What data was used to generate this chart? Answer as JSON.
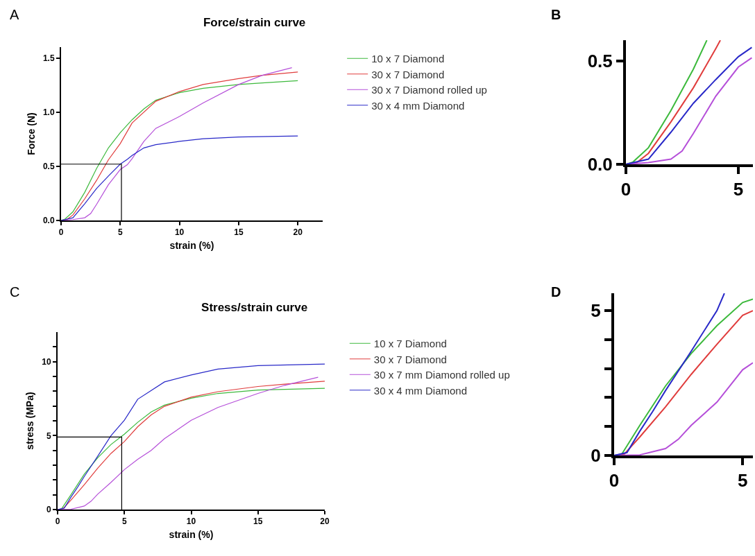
{
  "chart_data": [
    {
      "type": "line",
      "title": "Force/strain curve",
      "xlabel": "strain (%)",
      "ylabel": "Force (N)",
      "annotations": [
        "A"
      ],
      "xlim": [
        0,
        22.1
      ],
      "ylim": [
        0,
        1.6
      ],
      "xticks": [
        0,
        5,
        10,
        15,
        20
      ],
      "yticks": [
        {
          "value": 0,
          "label": "0.0"
        },
        0.5,
        {
          "value": 1,
          "label": "1.0"
        },
        1.5
      ],
      "grid": false,
      "legend": "right",
      "marker": "none",
      "line_style": "solid",
      "series": [
        {
          "name": "10 x 7 Diamond",
          "color": "#3cb93c",
          "x": [
            0,
            0.3,
            1,
            2,
            3,
            4,
            5,
            6,
            7,
            8,
            10,
            12,
            15,
            17,
            20
          ],
          "values": [
            0,
            0.01,
            0.08,
            0.26,
            0.48,
            0.67,
            0.81,
            0.93,
            1.03,
            1.11,
            1.18,
            1.22,
            1.255,
            1.27,
            1.29
          ]
        },
        {
          "name": "30 x 7 Diamond",
          "color": "#e03c3c",
          "x": [
            0,
            0.5,
            1,
            2,
            3,
            4,
            5,
            6,
            8,
            10,
            12,
            15,
            17,
            20
          ],
          "values": [
            0,
            0.01,
            0.05,
            0.2,
            0.37,
            0.56,
            0.71,
            0.9,
            1.1,
            1.19,
            1.255,
            1.31,
            1.34,
            1.37
          ]
        },
        {
          "name": "30 x 7 Diamond rolled up",
          "color": "#b54fd9",
          "x": [
            0,
            1,
            2,
            2.5,
            3,
            4,
            5,
            5.6,
            6,
            7,
            8,
            10,
            12,
            15,
            17,
            19.5
          ],
          "values": [
            0,
            0.008,
            0.025,
            0.064,
            0.149,
            0.33,
            0.47,
            0.515,
            0.57,
            0.73,
            0.85,
            0.96,
            1.085,
            1.255,
            1.34,
            1.41
          ]
        },
        {
          "name": "30 x 4 mm Diamond",
          "color": "#2828c8",
          "x": [
            0,
            1,
            2,
            3,
            4,
            5,
            5.6,
            6,
            7,
            8,
            10,
            12,
            15,
            20
          ],
          "values": [
            0,
            0.025,
            0.155,
            0.295,
            0.41,
            0.52,
            0.565,
            0.6,
            0.67,
            0.7,
            0.73,
            0.755,
            0.77,
            0.78
          ]
        },
        {
          "color": "#000000",
          "x": [
            0,
            5.1,
            5.1
          ],
          "values": [
            0.52,
            0.52,
            0
          ]
        }
      ]
    },
    {
      "type": "line",
      "annotations": [
        "B"
      ],
      "xlim": [
        0,
        5.65
      ],
      "ylim": [
        0,
        0.6
      ],
      "xticks": [
        0,
        5
      ],
      "yticks": [
        {
          "value": 0,
          "label": "0.0"
        },
        0.5
      ],
      "grid": false,
      "legend": false,
      "marker": "none",
      "line_style": "solid",
      "series": [
        {
          "color": "#3cb93c",
          "x": [
            0,
            0.3,
            1,
            2,
            3,
            3.6
          ],
          "values": [
            0,
            0.01,
            0.08,
            0.26,
            0.46,
            0.6
          ]
        },
        {
          "color": "#e03c3c",
          "x": [
            0,
            0.5,
            1,
            2,
            3,
            4,
            4.2
          ],
          "values": [
            0,
            0.01,
            0.053,
            0.205,
            0.37,
            0.56,
            0.6
          ]
        },
        {
          "color": "#b54fd9",
          "x": [
            0,
            1,
            2,
            2.5,
            3,
            4,
            5,
            5.6
          ],
          "values": [
            0,
            0.008,
            0.025,
            0.064,
            0.149,
            0.33,
            0.47,
            0.515
          ]
        },
        {
          "color": "#2828c8",
          "x": [
            0,
            1,
            2,
            3,
            4,
            5,
            5.6
          ],
          "values": [
            0,
            0.025,
            0.155,
            0.295,
            0.41,
            0.52,
            0.565
          ]
        }
      ]
    },
    {
      "type": "line",
      "title": "Stress/strain curve",
      "xlabel": "strain (%)",
      "ylabel": "stress (MPa)",
      "annotations": [
        "C"
      ],
      "xlim": [
        0,
        20
      ],
      "ylim": [
        0,
        12
      ],
      "xticks": [
        0,
        5,
        10,
        15,
        20
      ],
      "yticks": [
        0,
        {
          "value": 1,
          "label": null
        },
        {
          "value": 2,
          "label": null
        },
        {
          "value": 3,
          "label": null
        },
        {
          "value": 4,
          "label": null
        },
        5,
        {
          "value": 6,
          "label": null
        },
        {
          "value": 7,
          "label": null
        },
        {
          "value": 8,
          "label": null
        },
        {
          "value": 9,
          "label": null
        },
        10,
        {
          "value": 11,
          "label": null
        }
      ],
      "grid": false,
      "legend": "right",
      "marker": "none",
      "line_style": "solid",
      "series": [
        {
          "name": "10 x 7 Diamond",
          "color": "#3cb93c",
          "x": [
            0,
            0.3,
            1,
            2,
            3,
            4,
            5,
            6,
            7,
            8,
            10,
            12,
            15,
            20
          ],
          "values": [
            0,
            0.05,
            1.0,
            2.4,
            3.5,
            4.4,
            5.1,
            5.9,
            6.6,
            7.06,
            7.53,
            7.85,
            8.08,
            8.2
          ]
        },
        {
          "name": "30 x 7 Diamond",
          "color": "#e03c3c",
          "x": [
            0,
            0.4,
            1,
            2,
            3,
            4,
            5,
            6,
            7,
            8,
            10,
            12,
            15,
            17,
            20
          ],
          "values": [
            0,
            0.05,
            0.64,
            1.68,
            2.8,
            3.8,
            4.6,
            5.6,
            6.4,
            6.98,
            7.6,
            7.97,
            8.32,
            8.48,
            8.68
          ]
        },
        {
          "name": "30 x 7 mm Diamond rolled up",
          "color": "#b54fd9",
          "x": [
            0,
            1,
            2,
            2.5,
            3,
            4,
            5,
            6,
            7,
            8,
            10,
            12,
            15,
            17,
            19.5
          ],
          "values": [
            0,
            0.02,
            0.24,
            0.56,
            1.04,
            1.84,
            2.7,
            3.4,
            4.0,
            4.79,
            6.04,
            6.9,
            7.85,
            8.4,
            8.95
          ]
        },
        {
          "name": "30 x 4 mm Diamond",
          "color": "#2828c8",
          "x": [
            0,
            0.5,
            1,
            1.5,
            2,
            3,
            4,
            5,
            6,
            8,
            10,
            12,
            15,
            20
          ],
          "values": [
            0,
            0.1,
            0.84,
            1.52,
            2.24,
            3.6,
            5.0,
            6.04,
            7.46,
            8.63,
            9.1,
            9.5,
            9.73,
            9.84
          ]
        },
        {
          "color": "#000000",
          "x": [
            0,
            4.8,
            4.8
          ],
          "values": [
            4.9,
            4.9,
            0
          ]
        }
      ]
    },
    {
      "type": "line",
      "annotations": [
        "D"
      ],
      "xlim": [
        0,
        5.4
      ],
      "ylim": [
        0,
        5.6
      ],
      "xticks": [
        0,
        5
      ],
      "yticks": [
        0,
        {
          "value": 1,
          "label": null
        },
        {
          "value": 2,
          "label": null
        },
        {
          "value": 3,
          "label": null
        },
        {
          "value": 4,
          "label": null
        },
        5
      ],
      "grid": false,
      "legend": false,
      "marker": "none",
      "line_style": "solid",
      "series": [
        {
          "color": "#3cb93c",
          "x": [
            0,
            0.3,
            1,
            2,
            3,
            4,
            5,
            5.4
          ],
          "values": [
            0,
            0.05,
            1.04,
            2.4,
            3.52,
            4.48,
            5.28,
            5.4
          ]
        },
        {
          "color": "#e03c3c",
          "x": [
            0,
            0.4,
            1,
            2,
            3,
            4,
            5,
            5.4
          ],
          "values": [
            0,
            0.05,
            0.64,
            1.68,
            2.8,
            3.84,
            4.84,
            5.0
          ]
        },
        {
          "color": "#b54fd9",
          "x": [
            0,
            1,
            2,
            2.5,
            3,
            4,
            5,
            5.4
          ],
          "values": [
            0,
            0.02,
            0.24,
            0.56,
            1.04,
            1.84,
            2.96,
            3.2
          ]
        },
        {
          "color": "#2828c8",
          "x": [
            0,
            0.5,
            1,
            1.5,
            2,
            3,
            4,
            4.29
          ],
          "values": [
            0,
            0.1,
            0.84,
            1.52,
            2.24,
            3.6,
            5.0,
            5.6
          ]
        }
      ]
    }
  ]
}
